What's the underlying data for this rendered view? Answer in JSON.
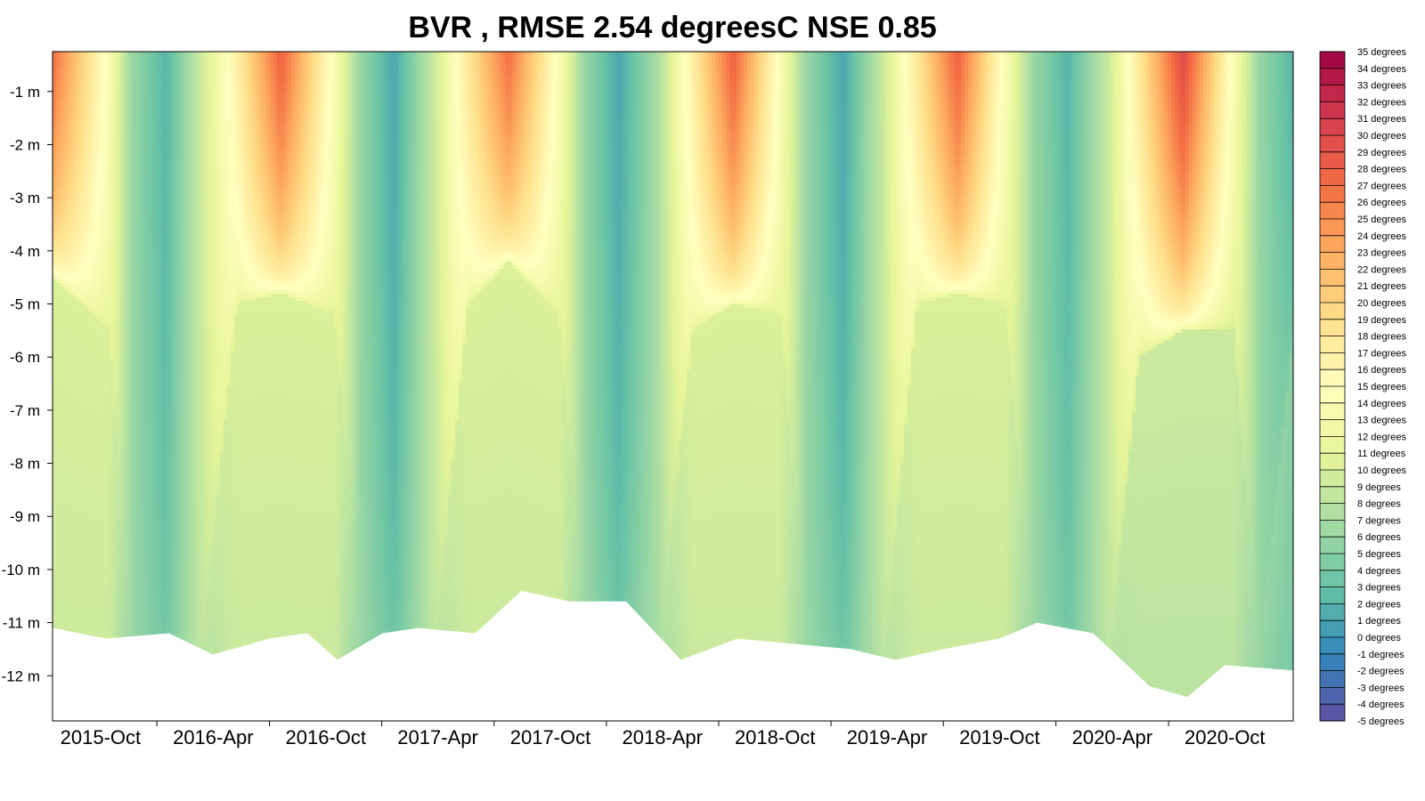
{
  "chart_data": {
    "type": "heatmap",
    "title": "BVR , RMSE 2.54 degreesC NSE 0.85",
    "xlabel": "",
    "ylabel": "",
    "x_range": [
      "2015-07-15",
      "2021-01-20"
    ],
    "ylim": [
      -12.85,
      -0.25
    ],
    "y_ticks": [
      {
        "value": -1,
        "label": "-1 m"
      },
      {
        "value": -2,
        "label": "-2 m"
      },
      {
        "value": -3,
        "label": "-3 m"
      },
      {
        "value": -4,
        "label": "-4 m"
      },
      {
        "value": -5,
        "label": "-5 m"
      },
      {
        "value": -6,
        "label": "-6 m"
      },
      {
        "value": -7,
        "label": "-7 m"
      },
      {
        "value": -8,
        "label": "-8 m"
      },
      {
        "value": -9,
        "label": "-9 m"
      },
      {
        "value": -10,
        "label": "-10 m"
      },
      {
        "value": -11,
        "label": "-11 m"
      },
      {
        "value": -12,
        "label": "-12 m"
      }
    ],
    "x_ticks": [
      {
        "date": "2015-10-01",
        "label": "2015-Oct"
      },
      {
        "date": "2016-04-01",
        "label": "2016-Apr"
      },
      {
        "date": "2016-10-01",
        "label": "2016-Oct"
      },
      {
        "date": "2017-04-01",
        "label": "2017-Apr"
      },
      {
        "date": "2017-10-01",
        "label": "2017-Oct"
      },
      {
        "date": "2018-04-01",
        "label": "2018-Apr"
      },
      {
        "date": "2018-10-01",
        "label": "2018-Oct"
      },
      {
        "date": "2019-04-01",
        "label": "2019-Apr"
      },
      {
        "date": "2019-10-01",
        "label": "2019-Oct"
      },
      {
        "date": "2020-04-01",
        "label": "2020-Apr"
      },
      {
        "date": "2020-10-01",
        "label": "2020-Oct"
      }
    ],
    "colorbar": {
      "min": -5,
      "max": 35,
      "labels": [
        "35 degrees",
        "34 degrees",
        "33 degrees",
        "32 degrees",
        "31 degrees",
        "30 degrees",
        "29 degrees",
        "28 degrees",
        "27 degrees",
        "26 degrees",
        "25 degrees",
        "24 degrees",
        "23 degrees",
        "22 degrees",
        "21 degrees",
        "20 degrees",
        "19 degrees",
        "18 degrees",
        "17 degrees",
        "16 degrees",
        "15 degrees",
        "14 degrees",
        "13 degrees",
        "12 degrees",
        "11 degrees",
        "10 degrees",
        "9 degrees",
        "8 degrees",
        "7 degrees",
        "6 degrees",
        "5 degrees",
        "4 degrees",
        "3 degrees",
        "2 degrees",
        "1 degrees",
        "0 degrees",
        "-1 degrees",
        "-2 degrees",
        "-3 degrees",
        "-4 degrees",
        "-5 degrees"
      ],
      "palette": [
        "#5e4fa2",
        "#3288bd",
        "#66c2a5",
        "#abdda4",
        "#e6f598",
        "#ffffbf",
        "#fee08b",
        "#fdae61",
        "#f46d43",
        "#d53e4f",
        "#9e0142"
      ]
    },
    "seasonal_profile": [
      {
        "date": "2015-07-15",
        "surface": 27,
        "thermocline_depth": -4.5,
        "bottom_temp": 10
      },
      {
        "date": "2015-10-15",
        "surface": 14,
        "thermocline_depth": -5.5,
        "bottom_temp": 10
      },
      {
        "date": "2015-11-20",
        "surface": 6,
        "thermocline_depth": -12,
        "bottom_temp": 6
      },
      {
        "date": "2016-01-15",
        "surface": 2,
        "thermocline_depth": -12,
        "bottom_temp": 5
      },
      {
        "date": "2016-03-10",
        "surface": 9,
        "thermocline_depth": -12,
        "bottom_temp": 8
      },
      {
        "date": "2016-05-10",
        "surface": 17,
        "thermocline_depth": -5,
        "bottom_temp": 10
      },
      {
        "date": "2016-07-20",
        "surface": 28,
        "thermocline_depth": -4.8,
        "bottom_temp": 10
      },
      {
        "date": "2016-10-15",
        "surface": 14,
        "thermocline_depth": -5.2,
        "bottom_temp": 10
      },
      {
        "date": "2016-11-25",
        "surface": 6,
        "thermocline_depth": -12,
        "bottom_temp": 6
      },
      {
        "date": "2017-01-20",
        "surface": 1,
        "thermocline_depth": -12,
        "bottom_temp": 5
      },
      {
        "date": "2017-03-25",
        "surface": 9,
        "thermocline_depth": -12,
        "bottom_temp": 8
      },
      {
        "date": "2017-05-20",
        "surface": 18,
        "thermocline_depth": -5,
        "bottom_temp": 10
      },
      {
        "date": "2017-07-25",
        "surface": 27,
        "thermocline_depth": -4.2,
        "bottom_temp": 10
      },
      {
        "date": "2017-10-15",
        "surface": 14,
        "thermocline_depth": -5.2,
        "bottom_temp": 10
      },
      {
        "date": "2017-11-25",
        "surface": 6,
        "thermocline_depth": -12,
        "bottom_temp": 6
      },
      {
        "date": "2018-01-20",
        "surface": 1,
        "thermocline_depth": -12,
        "bottom_temp": 5
      },
      {
        "date": "2018-03-25",
        "surface": 7,
        "thermocline_depth": -12,
        "bottom_temp": 7
      },
      {
        "date": "2018-05-20",
        "surface": 17,
        "thermocline_depth": -5.5,
        "bottom_temp": 10
      },
      {
        "date": "2018-07-25",
        "surface": 28,
        "thermocline_depth": -5,
        "bottom_temp": 10
      },
      {
        "date": "2018-10-10",
        "surface": 14,
        "thermocline_depth": -5.2,
        "bottom_temp": 10
      },
      {
        "date": "2018-11-20",
        "surface": 6,
        "thermocline_depth": -12,
        "bottom_temp": 6
      },
      {
        "date": "2019-01-20",
        "surface": 1,
        "thermocline_depth": -12,
        "bottom_temp": 5
      },
      {
        "date": "2019-03-25",
        "surface": 9,
        "thermocline_depth": -12,
        "bottom_temp": 8
      },
      {
        "date": "2019-05-20",
        "surface": 18,
        "thermocline_depth": -5,
        "bottom_temp": 10
      },
      {
        "date": "2019-07-25",
        "surface": 28,
        "thermocline_depth": -4.8,
        "bottom_temp": 10
      },
      {
        "date": "2019-10-10",
        "surface": 14,
        "thermocline_depth": -5,
        "bottom_temp": 10
      },
      {
        "date": "2019-11-25",
        "surface": 6,
        "thermocline_depth": -12,
        "bottom_temp": 6
      },
      {
        "date": "2020-01-20",
        "surface": 2,
        "thermocline_depth": -12,
        "bottom_temp": 5
      },
      {
        "date": "2020-03-25",
        "surface": 9,
        "thermocline_depth": -12,
        "bottom_temp": 8
      },
      {
        "date": "2020-05-15",
        "surface": 18,
        "thermocline_depth": -6,
        "bottom_temp": 9
      },
      {
        "date": "2020-07-25",
        "surface": 30,
        "thermocline_depth": -5.5,
        "bottom_temp": 9
      },
      {
        "date": "2020-10-15",
        "surface": 14,
        "thermocline_depth": -5.5,
        "bottom_temp": 9
      },
      {
        "date": "2020-11-25",
        "surface": 6,
        "thermocline_depth": -12,
        "bottom_temp": 6
      },
      {
        "date": "2021-01-20",
        "surface": 2,
        "thermocline_depth": -5.5,
        "bottom_temp": 5
      }
    ],
    "bottom_boundary": [
      {
        "date": "2015-07-15",
        "depth": -11.1
      },
      {
        "date": "2015-10-10",
        "depth": -11.3
      },
      {
        "date": "2016-01-20",
        "depth": -11.2
      },
      {
        "date": "2016-04-01",
        "depth": -11.6
      },
      {
        "date": "2016-07-01",
        "depth": -11.3
      },
      {
        "date": "2016-09-01",
        "depth": -11.2
      },
      {
        "date": "2016-10-20",
        "depth": -11.7
      },
      {
        "date": "2017-01-01",
        "depth": -11.2
      },
      {
        "date": "2017-03-01",
        "depth": -11.1
      },
      {
        "date": "2017-06-01",
        "depth": -11.2
      },
      {
        "date": "2017-08-15",
        "depth": -10.4
      },
      {
        "date": "2017-11-01",
        "depth": -10.6
      },
      {
        "date": "2018-02-01",
        "depth": -10.6
      },
      {
        "date": "2018-05-01",
        "depth": -11.7
      },
      {
        "date": "2018-08-01",
        "depth": -11.3
      },
      {
        "date": "2018-11-01",
        "depth": -11.4
      },
      {
        "date": "2019-02-01",
        "depth": -11.5
      },
      {
        "date": "2019-04-15",
        "depth": -11.7
      },
      {
        "date": "2019-07-01",
        "depth": -11.5
      },
      {
        "date": "2019-10-01",
        "depth": -11.3
      },
      {
        "date": "2019-12-01",
        "depth": -11.0
      },
      {
        "date": "2020-03-01",
        "depth": -11.2
      },
      {
        "date": "2020-06-01",
        "depth": -12.2
      },
      {
        "date": "2020-08-01",
        "depth": -12.4
      },
      {
        "date": "2020-10-01",
        "depth": -11.8
      },
      {
        "date": "2021-01-20",
        "depth": -11.9
      }
    ]
  }
}
